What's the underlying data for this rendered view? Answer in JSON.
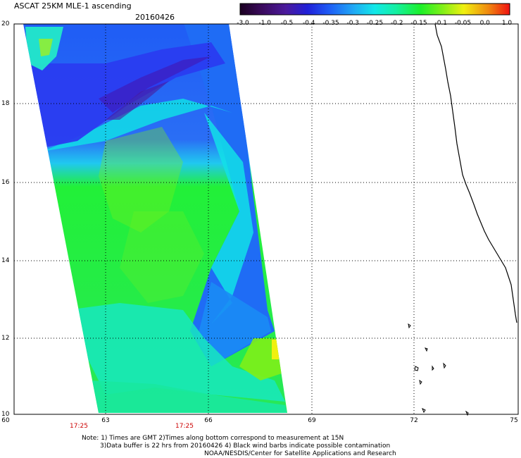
{
  "header": {
    "title": "ASCAT 25KM MLE-1 ascending",
    "date": "20160426"
  },
  "colorbar": {
    "ticks": [
      "-3.0",
      "-1.0",
      "-0.5",
      "-0.4",
      "-0.35",
      "-0.3",
      "-0.25",
      "-0.2",
      "-0.15",
      "-0.1",
      "-0.05",
      "0.0",
      "1.0"
    ],
    "colors": [
      "#2a0a3a",
      "#4b1a8c",
      "#2b20c8",
      "#1d3cf0",
      "#1f6cf5",
      "#20a8f5",
      "#12e6e6",
      "#16f0a0",
      "#1ef028",
      "#7ef018",
      "#f0f010",
      "#f09010",
      "#f03010"
    ]
  },
  "map": {
    "lat_labels": [
      "20",
      "18",
      "16",
      "14",
      "12",
      "10"
    ],
    "lon_labels": [
      "60",
      "63",
      "66",
      "69",
      "72",
      "75"
    ],
    "pass_times": [
      "17:25",
      "17:25"
    ],
    "land_color": "#000000",
    "water_background": "#ffffff"
  },
  "notes": {
    "line1": "Note: 1) Times are GMT 2)Times along bottom correspond to measurement at 15N",
    "line2": "3)Data buffer is 22 hrs from 20160426 4) Black wind barbs indicate possible contamination",
    "line3": "NOAA/NESDIS/Center for Satellite Applications and Research"
  }
}
